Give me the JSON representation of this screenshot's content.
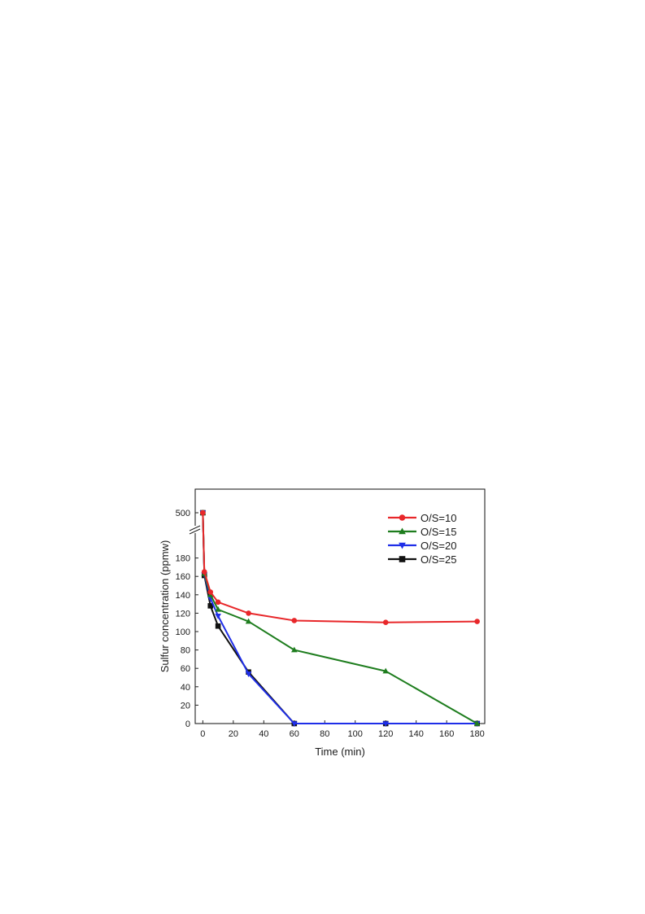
{
  "chart_data": {
    "type": "line",
    "xlabel": "Time (min)",
    "ylabel": "Sulfur concentration (ppmw)",
    "xlim": [
      -5,
      185
    ],
    "x_ticks": [
      0,
      20,
      40,
      60,
      80,
      100,
      120,
      140,
      160,
      180
    ],
    "ylim": [
      0,
      200
    ],
    "y_ticks": [
      0,
      20,
      40,
      60,
      80,
      100,
      120,
      140,
      160,
      180
    ],
    "y_break": {
      "from": 200,
      "to": 500
    },
    "y_upper_ticks": [
      500
    ],
    "grid": false,
    "legend_position": "top-right",
    "series": [
      {
        "name": "O/S=10",
        "color": "#e8272a",
        "marker": "circle",
        "points": [
          [
            0,
            500
          ],
          [
            1,
            165
          ],
          [
            5,
            143
          ],
          [
            10,
            132
          ],
          [
            30,
            120
          ],
          [
            60,
            112
          ],
          [
            120,
            110
          ],
          [
            180,
            111
          ]
        ]
      },
      {
        "name": "O/S=15",
        "color": "#1e7d1e",
        "marker": "triangle-up",
        "points": [
          [
            0,
            500
          ],
          [
            1,
            163
          ],
          [
            5,
            140
          ],
          [
            10,
            124
          ],
          [
            30,
            111
          ],
          [
            60,
            80
          ],
          [
            120,
            57
          ],
          [
            180,
            0
          ]
        ]
      },
      {
        "name": "O/S=20",
        "color": "#1f2ee8",
        "marker": "triangle-down",
        "points": [
          [
            0,
            500
          ],
          [
            1,
            162
          ],
          [
            5,
            136
          ],
          [
            10,
            117
          ],
          [
            30,
            54
          ],
          [
            60,
            0
          ],
          [
            120,
            0
          ],
          [
            180,
            0
          ]
        ]
      },
      {
        "name": "O/S=25",
        "color": "#111111",
        "marker": "square",
        "points": [
          [
            0,
            500
          ],
          [
            1,
            161
          ],
          [
            5,
            128
          ],
          [
            10,
            106
          ],
          [
            30,
            56
          ],
          [
            60,
            0
          ],
          [
            120,
            0
          ],
          [
            180,
            0
          ]
        ]
      }
    ]
  }
}
